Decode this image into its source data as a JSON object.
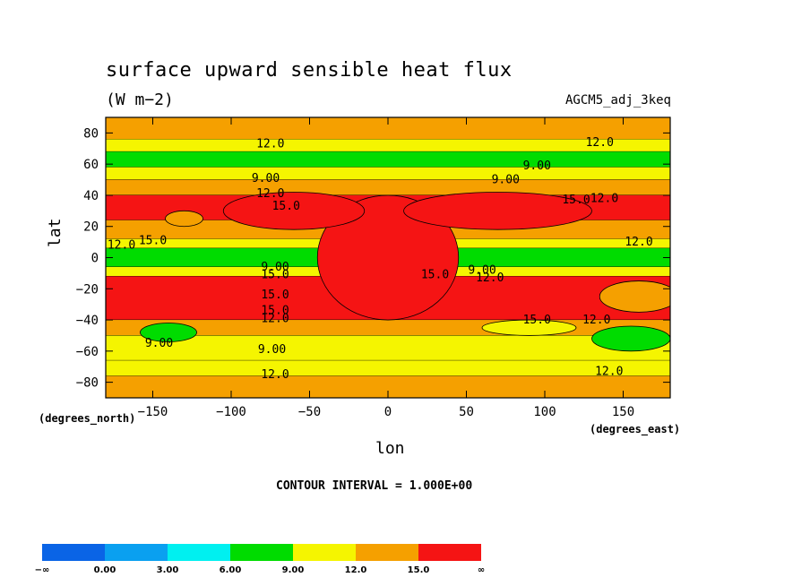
{
  "chart_data": {
    "type": "heatmap",
    "title": "surface upward sensible heat flux",
    "units": "(W m−2)",
    "run_label": "AGCM5_adj_3keq",
    "xlabel": "lon",
    "ylabel": "lat",
    "x_unit_label": "(degrees_east)",
    "y_unit_label": "(degrees_north)",
    "xlim": [
      -180,
      180
    ],
    "ylim": [
      -90,
      90
    ],
    "x_ticks": [
      -150,
      -100,
      -50,
      0,
      50,
      100,
      150
    ],
    "x_tick_labels": [
      "−150",
      "−100",
      "−50",
      "0",
      "50",
      "100",
      "150"
    ],
    "y_ticks": [
      80,
      60,
      40,
      20,
      0,
      -20,
      -40,
      -60,
      -80
    ],
    "y_tick_labels": [
      "80",
      "60",
      "40",
      "20",
      "0",
      "−20",
      "−40",
      "−60",
      "−80"
    ],
    "contour_interval_label": "CONTOUR INTERVAL = 1.000E+00",
    "levels": [
      {
        "label": "−∞",
        "color": "#0a64e6"
      },
      {
        "label": "0.00",
        "color": "#0aa0f0"
      },
      {
        "label": "3.00",
        "color": "#00f0f0"
      },
      {
        "label": "6.00",
        "color": "#00dc00"
      },
      {
        "label": "9.00",
        "color": "#f5f500"
      },
      {
        "label": "12.0",
        "color": "#f5a000"
      },
      {
        "label": "15.0",
        "color": "#f51414"
      },
      {
        "label": "∞",
        "color": null
      }
    ],
    "bands": [
      {
        "lat": [
          76,
          90
        ],
        "level": 12
      },
      {
        "lat": [
          68,
          76
        ],
        "level": 9
      },
      {
        "lat": [
          58,
          68
        ],
        "level": 6
      },
      {
        "lat": [
          50,
          58
        ],
        "level": 9
      },
      {
        "lat": [
          40,
          50
        ],
        "level": 12
      },
      {
        "lat": [
          24,
          40
        ],
        "level": 15
      },
      {
        "lat": [
          12,
          24
        ],
        "level": 12
      },
      {
        "lat": [
          6,
          12
        ],
        "level": 9
      },
      {
        "lat": [
          -6,
          6
        ],
        "level": 6
      },
      {
        "lat": [
          -12,
          -6
        ],
        "level": 9
      },
      {
        "lat": [
          -40,
          -12
        ],
        "level": 15
      },
      {
        "lat": [
          -50,
          -40
        ],
        "level": 12
      },
      {
        "lat": [
          -66,
          -50
        ],
        "level": 9
      },
      {
        "lat": [
          -76,
          -66
        ],
        "level": 9
      },
      {
        "lat": [
          -90,
          -76
        ],
        "level": 12
      }
    ],
    "blobs": [
      {
        "lon": 0,
        "lat": 0,
        "rx": 45,
        "ry": 40,
        "level": 15
      },
      {
        "lon": -60,
        "lat": 30,
        "rx": 45,
        "ry": 12,
        "level": 15
      },
      {
        "lon": 70,
        "lat": 30,
        "rx": 60,
        "ry": 12,
        "level": 15
      },
      {
        "lon": -140,
        "lat": -48,
        "rx": 18,
        "ry": 6,
        "level": 6
      },
      {
        "lon": 155,
        "lat": -52,
        "rx": 25,
        "ry": 8,
        "level": 6
      },
      {
        "lon": 90,
        "lat": -45,
        "rx": 30,
        "ry": 5,
        "level": 9
      },
      {
        "lon": 160,
        "lat": -25,
        "rx": 25,
        "ry": 10,
        "level": 12
      },
      {
        "lon": -130,
        "lat": 25,
        "rx": 12,
        "ry": 5,
        "level": 12
      }
    ],
    "contour_labels": [
      {
        "text": "12.0",
        "lon": -75,
        "lat": 73
      },
      {
        "text": "12.0",
        "lon": 135,
        "lat": 74
      },
      {
        "text": "9.00",
        "lon": 95,
        "lat": 59
      },
      {
        "text": "9.00",
        "lon": -78,
        "lat": 51
      },
      {
        "text": "9.00",
        "lon": 75,
        "lat": 50
      },
      {
        "text": "12.0",
        "lon": -75,
        "lat": 41
      },
      {
        "text": "15.0",
        "lon": -65,
        "lat": 33
      },
      {
        "text": "15.0",
        "lon": 120,
        "lat": 37
      },
      {
        "text": "12.0",
        "lon": 138,
        "lat": 38
      },
      {
        "text": "12.0",
        "lon": -170,
        "lat": 8
      },
      {
        "text": "15.0",
        "lon": -150,
        "lat": 11
      },
      {
        "text": "12.0",
        "lon": 160,
        "lat": 10
      },
      {
        "text": "9.00",
        "lon": -72,
        "lat": -6
      },
      {
        "text": "15.0",
        "lon": -72,
        "lat": -11
      },
      {
        "text": "9.00",
        "lon": 60,
        "lat": -8
      },
      {
        "text": "15.0",
        "lon": 30,
        "lat": -11
      },
      {
        "text": "12.0",
        "lon": 65,
        "lat": -13
      },
      {
        "text": "15.0",
        "lon": -72,
        "lat": -24
      },
      {
        "text": "15.0",
        "lon": -72,
        "lat": -34
      },
      {
        "text": "12.0",
        "lon": -72,
        "lat": -39
      },
      {
        "text": "15.0",
        "lon": 95,
        "lat": -40
      },
      {
        "text": "12.0",
        "lon": 133,
        "lat": -40
      },
      {
        "text": "9.00",
        "lon": -146,
        "lat": -55
      },
      {
        "text": "9.00",
        "lon": -74,
        "lat": -59
      },
      {
        "text": "12.0",
        "lon": -72,
        "lat": -75
      },
      {
        "text": "12.0",
        "lon": 141,
        "lat": -73
      }
    ]
  }
}
